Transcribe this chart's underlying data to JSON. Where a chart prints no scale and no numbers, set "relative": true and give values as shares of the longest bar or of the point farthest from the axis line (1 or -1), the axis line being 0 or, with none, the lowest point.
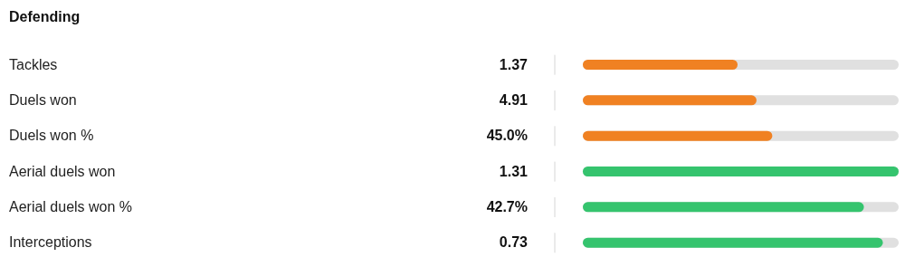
{
  "chart_data": {
    "type": "bar",
    "orientation": "horizontal",
    "relative": true,
    "title": "Defending",
    "categories": [
      "Tackles",
      "Duels won",
      "Duels won %",
      "Aerial duels won",
      "Aerial duels won %",
      "Interceptions"
    ],
    "values": [
      0.49,
      0.55,
      0.6,
      1,
      0.89,
      0.95
    ],
    "colors": [
      "#f08122",
      "#f08122",
      "#f08122",
      "#35c46e",
      "#35c46e",
      "#35c46e"
    ],
    "annotations": [
      "1.37",
      "4.91",
      "45.0%",
      "1.31",
      "42.7%",
      "0.73"
    ]
  }
}
